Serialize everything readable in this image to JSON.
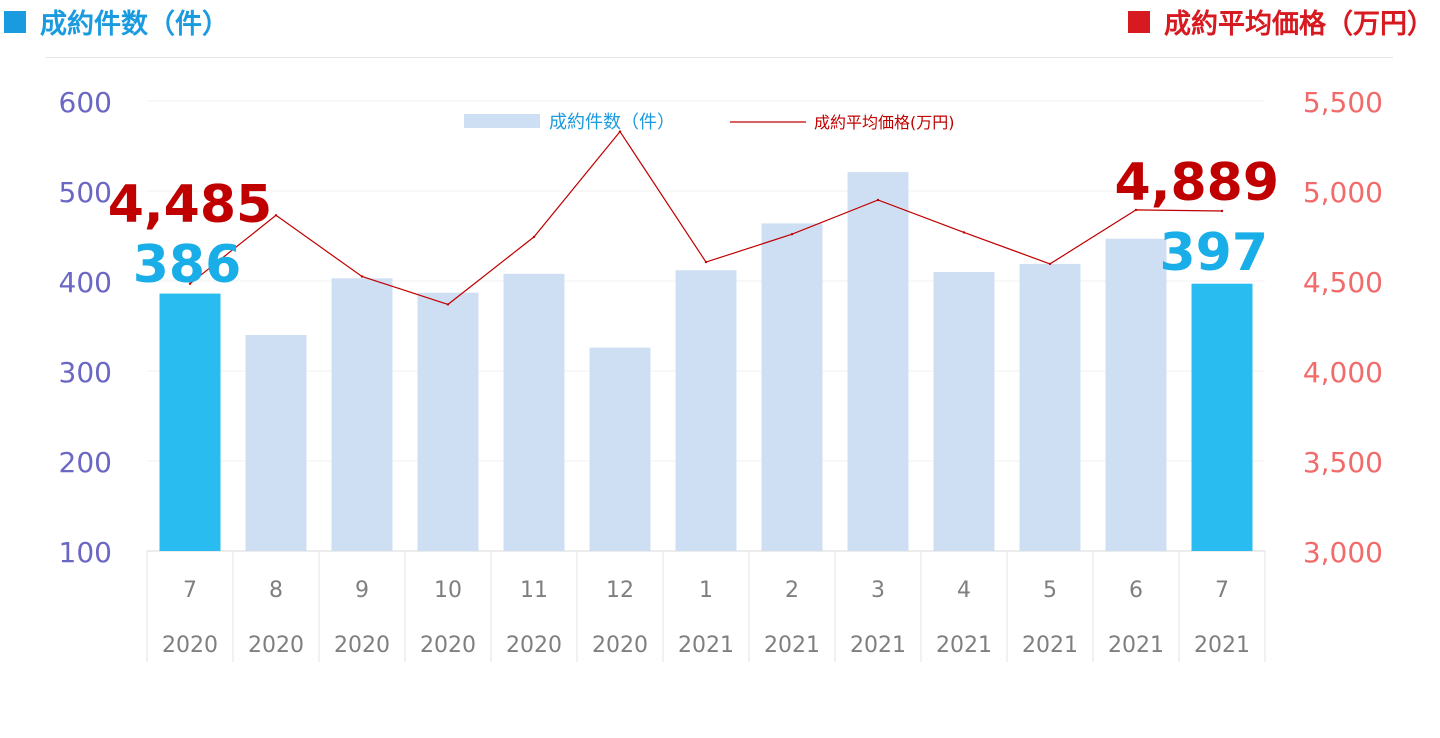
{
  "header": {
    "left_title": "成約件数（件）",
    "right_title": "成約平均価格（万円）",
    "left_color": "#1a9be0",
    "right_color": "#d71920"
  },
  "chart_data": {
    "type": "bar",
    "categories": [
      {
        "month": "7",
        "year": "2020"
      },
      {
        "month": "8",
        "year": "2020"
      },
      {
        "month": "9",
        "year": "2020"
      },
      {
        "month": "10",
        "year": "2020"
      },
      {
        "month": "11",
        "year": "2020"
      },
      {
        "month": "12",
        "year": "2020"
      },
      {
        "month": "1",
        "year": "2021"
      },
      {
        "month": "2",
        "year": "2021"
      },
      {
        "month": "3",
        "year": "2021"
      },
      {
        "month": "4",
        "year": "2021"
      },
      {
        "month": "5",
        "year": "2021"
      },
      {
        "month": "6",
        "year": "2021"
      },
      {
        "month": "7",
        "year": "2021"
      }
    ],
    "series": [
      {
        "name": "成約件数（件）",
        "type": "bar",
        "axis": "left",
        "values": [
          386,
          340,
          403,
          387,
          408,
          326,
          412,
          464,
          521,
          410,
          419,
          447,
          397
        ],
        "color": "#cfdff3",
        "highlight_color": "#29bcf0",
        "highlight_indices": [
          0,
          12
        ]
      },
      {
        "name": "成約平均価格(万円)",
        "type": "line",
        "axis": "right",
        "values": [
          4485,
          4865,
          4525,
          4370,
          4745,
          5330,
          4605,
          4760,
          4950,
          4770,
          4595,
          4895,
          4889
        ],
        "color": "#c00000"
      }
    ],
    "left_axis": {
      "min": 100,
      "max": 600,
      "ticks": [
        "100",
        "200",
        "300",
        "400",
        "500",
        "600"
      ],
      "color": "#6b67c4"
    },
    "right_axis": {
      "min": 3000,
      "max": 5500,
      "ticks": [
        "3,000",
        "3,500",
        "4,000",
        "4,500",
        "5,000",
        "5,500"
      ],
      "color": "#f26b6b"
    },
    "annotations": [
      {
        "text": "4,485",
        "color": "#c00000",
        "index": 0,
        "series": "line"
      },
      {
        "text": "386",
        "color": "#1aaee8",
        "index": 0,
        "series": "bar"
      },
      {
        "text": "4,889",
        "color": "#c00000",
        "index": 12,
        "series": "line"
      },
      {
        "text": "397",
        "color": "#1aaee8",
        "index": 12,
        "series": "bar"
      }
    ],
    "legend": {
      "placement": "top-center"
    },
    "grid": true
  }
}
